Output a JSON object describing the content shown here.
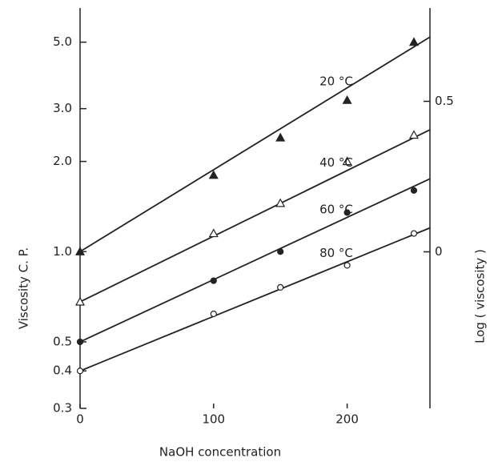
{
  "chart_data": {
    "type": "scatter",
    "x_label": "NaOH concentration",
    "y_label": "Viscosity  C. P.",
    "y2_label": "Log ( viscosity )",
    "x": [
      0,
      100,
      150,
      200,
      250
    ],
    "fit_x": [
      0,
      262
    ],
    "series": [
      {
        "name": "20 °C",
        "color": "#222",
        "marker": "triangle",
        "filled": true,
        "values": [
          1.0,
          1.8,
          2.4,
          3.2,
          5.0
        ],
        "fit_values": [
          1.0,
          5.2
        ]
      },
      {
        "name": "40 °C",
        "color": "#222",
        "marker": "triangle",
        "filled": false,
        "values": [
          0.68,
          1.15,
          1.45,
          2.0,
          2.45
        ],
        "fit_values": [
          0.68,
          2.55
        ]
      },
      {
        "name": "60 °C",
        "color": "#222",
        "marker": "circle",
        "filled": true,
        "values": [
          0.5,
          0.8,
          1.0,
          1.35,
          1.6
        ],
        "fit_values": [
          0.5,
          1.75
        ]
      },
      {
        "name": "80 °C",
        "color": "#222",
        "marker": "circle",
        "filled": false,
        "values": [
          0.4,
          0.62,
          0.76,
          0.9,
          1.15
        ],
        "fit_values": [
          0.4,
          1.2
        ]
      }
    ],
    "xlim": [
      0,
      262
    ],
    "xticks": [
      0,
      100,
      200
    ],
    "ylim": [
      0.3,
      6.5
    ],
    "log_y": true,
    "yticks": [
      {
        "value": 5,
        "label": "5.0"
      },
      {
        "value": 3,
        "label": "3.0"
      },
      {
        "value": 2,
        "label": "2.0"
      },
      {
        "value": 1,
        "label": "1.0"
      },
      0.5,
      0.4,
      0.3
    ],
    "y2lim": [
      -0.52,
      0.81
    ],
    "y2ticks": [
      0.5,
      0
    ]
  }
}
